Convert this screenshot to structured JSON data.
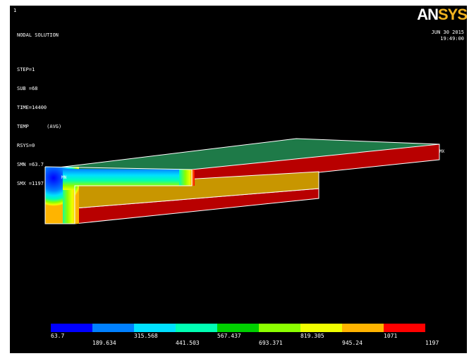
{
  "window": {
    "number": "1"
  },
  "logo": {
    "an": "AN",
    "sys": "SYS"
  },
  "header": {
    "title": "NODAL SOLUTION",
    "lines": [
      "STEP=1",
      "SUB =68",
      "TIME=14400",
      "TEMP      (AVG)",
      "RSYS=0",
      "SMN =63.7",
      "SMX =1197"
    ],
    "date": "JUN 30 2015",
    "time": "19:49:00"
  },
  "plot": {
    "mn_marker": "MN",
    "mx_marker": "MX",
    "contour_colors": [
      "#0000ff",
      "#0080ff",
      "#00e0ff",
      "#00ffb4",
      "#00d000",
      "#8cff00",
      "#f0ff00",
      "#ffb400",
      "#ff0000"
    ],
    "model_face_colors": {
      "top_surface": "#1e7a48",
      "red_bands": "#b80000",
      "yellow_block": "#c89600",
      "edges": "#ffffff"
    }
  },
  "legend": {
    "colors": [
      "#0000ff",
      "#0080ff",
      "#00e0ff",
      "#00ffb4",
      "#00d000",
      "#8cff00",
      "#f0ff00",
      "#ffb400",
      "#ff0000"
    ],
    "top_labels": [
      "63.7",
      "315.568",
      "567.437",
      "819.305",
      "1071"
    ],
    "bottom_labels": [
      "189.634",
      "441.503",
      "693.371",
      "945.24",
      "1197"
    ]
  }
}
